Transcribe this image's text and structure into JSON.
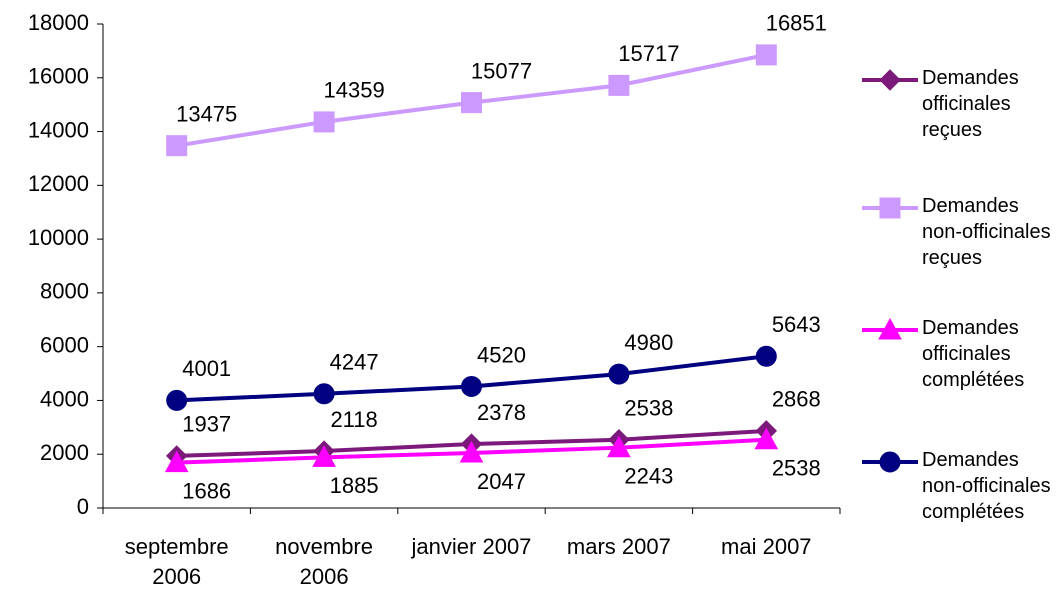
{
  "chart_data": {
    "type": "line",
    "categories": [
      "septembre 2006",
      "novembre 2006",
      "janvier 2007",
      "mars 2007",
      "mai 2007"
    ],
    "series": [
      {
        "name": "Demandes officinales reçues",
        "color": "#7b1a7b",
        "marker": "diamond",
        "values": [
          1937,
          2118,
          2378,
          2538,
          2868
        ]
      },
      {
        "name": "Demandes non-officinales reçues",
        "color": "#cc99ff",
        "marker": "square",
        "values": [
          13475,
          14359,
          15077,
          15717,
          16851
        ]
      },
      {
        "name": "Demandes officinales complétées",
        "color": "#ff00ff",
        "marker": "triangle",
        "values": [
          1686,
          1885,
          2047,
          2243,
          2538
        ]
      },
      {
        "name": "Demandes non-officinales complétées",
        "color": "#000080",
        "marker": "circle",
        "values": [
          4001,
          4247,
          4520,
          4980,
          5643
        ]
      }
    ],
    "ylim": [
      0,
      18000
    ],
    "yticks": [
      0,
      2000,
      4000,
      6000,
      8000,
      10000,
      12000,
      14000,
      16000,
      18000
    ],
    "grid": false,
    "legend": "right"
  }
}
